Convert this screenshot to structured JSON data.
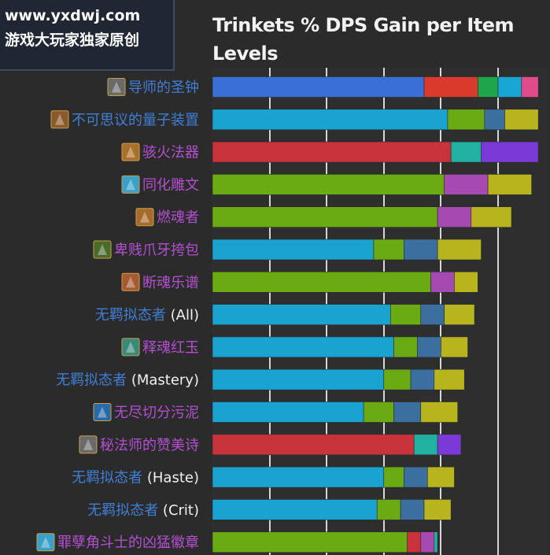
{
  "watermark": {
    "line1": "www.yxdwj.com",
    "line2": "游戏大玩家独家原创"
  },
  "chart_data": {
    "type": "bar",
    "orientation": "horizontal",
    "stacked": true,
    "title": "Trinkets % DPS Gain per Item Levels",
    "grid": true,
    "x_range": [
      0,
      100
    ],
    "items": [
      {
        "label": "导师的圣钟",
        "suffix": "",
        "label_color": "#3f7fd6",
        "icon": "bell-icon",
        "segments": [
          {
            "color": "#3a6fd8",
            "value": 63
          },
          {
            "color": "#d93a2b",
            "value": 16
          },
          {
            "color": "#1fa64a",
            "value": 6
          },
          {
            "color": "#18a6d4",
            "value": 7
          },
          {
            "color": "#e04c8a",
            "value": 5
          }
        ]
      },
      {
        "label": "不可思议的量子装置",
        "suffix": "",
        "label_color": "#3f7fd6",
        "icon": "quantum-device-icon",
        "segments": [
          {
            "color": "#1aa3d1",
            "value": 70
          },
          {
            "color": "#6aab14",
            "value": 11
          },
          {
            "color": "#3a6fa0",
            "value": 6
          },
          {
            "color": "#b8b41e",
            "value": 10
          }
        ]
      },
      {
        "label": "骇火法器",
        "suffix": "",
        "label_color": "#b34fd0",
        "icon": "fire-device-icon",
        "segments": [
          {
            "color": "#c8323a",
            "value": 71
          },
          {
            "color": "#22b0a0",
            "value": 9
          },
          {
            "color": "#7b3ad6",
            "value": 17
          }
        ]
      },
      {
        "label": "同化雕文",
        "suffix": "",
        "label_color": "#b34fd0",
        "icon": "glyph-icon",
        "segments": [
          {
            "color": "#6aab14",
            "value": 69
          },
          {
            "color": "#a44ab0",
            "value": 13
          },
          {
            "color": "#b8b41e",
            "value": 13
          }
        ]
      },
      {
        "label": "燃魂者",
        "suffix": "",
        "label_color": "#b34fd0",
        "icon": "soul-burner-icon",
        "segments": [
          {
            "color": "#6aab14",
            "value": 67
          },
          {
            "color": "#a44ab0",
            "value": 10
          },
          {
            "color": "#b8b41e",
            "value": 12
          }
        ]
      },
      {
        "label": "卑贱爪牙挎包",
        "suffix": "",
        "label_color": "#b34fd0",
        "icon": "satchel-icon",
        "segments": [
          {
            "color": "#1aa3d1",
            "value": 48
          },
          {
            "color": "#6aab14",
            "value": 9
          },
          {
            "color": "#3a6fa0",
            "value": 10
          },
          {
            "color": "#b8b41e",
            "value": 13
          }
        ]
      },
      {
        "label": "断魂乐谱",
        "suffix": "",
        "label_color": "#b34fd0",
        "icon": "sheet-music-icon",
        "segments": [
          {
            "color": "#6aab14",
            "value": 65
          },
          {
            "color": "#a44ab0",
            "value": 7
          },
          {
            "color": "#b8b41e",
            "value": 7
          }
        ]
      },
      {
        "label": "无羁拟态者",
        "suffix": "(All)",
        "label_color": "#3f7fd6",
        "icon": "",
        "segments": [
          {
            "color": "#1aa3d1",
            "value": 53
          },
          {
            "color": "#6aab14",
            "value": 9
          },
          {
            "color": "#3a6fa0",
            "value": 7
          },
          {
            "color": "#b8b41e",
            "value": 9
          }
        ]
      },
      {
        "label": "释魂红玉",
        "suffix": "",
        "label_color": "#b34fd0",
        "icon": "ruby-icon",
        "segments": [
          {
            "color": "#1aa3d1",
            "value": 54
          },
          {
            "color": "#6aab14",
            "value": 7
          },
          {
            "color": "#3a6fa0",
            "value": 7
          },
          {
            "color": "#b8b41e",
            "value": 8
          }
        ]
      },
      {
        "label": "无羁拟态者",
        "suffix": "(Mastery)",
        "label_color": "#3f7fd6",
        "icon": "",
        "segments": [
          {
            "color": "#1aa3d1",
            "value": 51
          },
          {
            "color": "#6aab14",
            "value": 8
          },
          {
            "color": "#3a6fa0",
            "value": 7
          },
          {
            "color": "#b8b41e",
            "value": 9
          }
        ]
      },
      {
        "label": "无尽切分污泥",
        "suffix": "",
        "label_color": "#b34fd0",
        "icon": "ooze-icon",
        "segments": [
          {
            "color": "#1aa3d1",
            "value": 45
          },
          {
            "color": "#6aab14",
            "value": 9
          },
          {
            "color": "#3a6fa0",
            "value": 8
          },
          {
            "color": "#b8b41e",
            "value": 11
          }
        ]
      },
      {
        "label": "秘法师的赞美诗",
        "suffix": "",
        "label_color": "#b34fd0",
        "icon": "hymn-icon",
        "segments": [
          {
            "color": "#c8323a",
            "value": 60
          },
          {
            "color": "#22b0a0",
            "value": 7
          },
          {
            "color": "#7b3ad6",
            "value": 7
          }
        ]
      },
      {
        "label": "无羁拟态者",
        "suffix": "(Haste)",
        "label_color": "#3f7fd6",
        "icon": "",
        "segments": [
          {
            "color": "#1aa3d1",
            "value": 51
          },
          {
            "color": "#6aab14",
            "value": 6
          },
          {
            "color": "#3a6fa0",
            "value": 7
          },
          {
            "color": "#b8b41e",
            "value": 8
          }
        ]
      },
      {
        "label": "无羁拟态者",
        "suffix": "(Crit)",
        "label_color": "#3f7fd6",
        "icon": "",
        "segments": [
          {
            "color": "#1aa3d1",
            "value": 49
          },
          {
            "color": "#6aab14",
            "value": 7
          },
          {
            "color": "#3a6fa0",
            "value": 7
          },
          {
            "color": "#b8b41e",
            "value": 8
          }
        ]
      },
      {
        "label": "罪孽角斗士的凶猛徽章",
        "suffix": "",
        "label_color": "#b34fd0",
        "icon": "insignia-icon",
        "segments": [
          {
            "color": "#6aab14",
            "value": 58
          },
          {
            "color": "#c8323a",
            "value": 4
          },
          {
            "color": "#a44ab0",
            "value": 4
          },
          {
            "color": "#22b0a0",
            "value": 1
          }
        ]
      }
    ]
  }
}
